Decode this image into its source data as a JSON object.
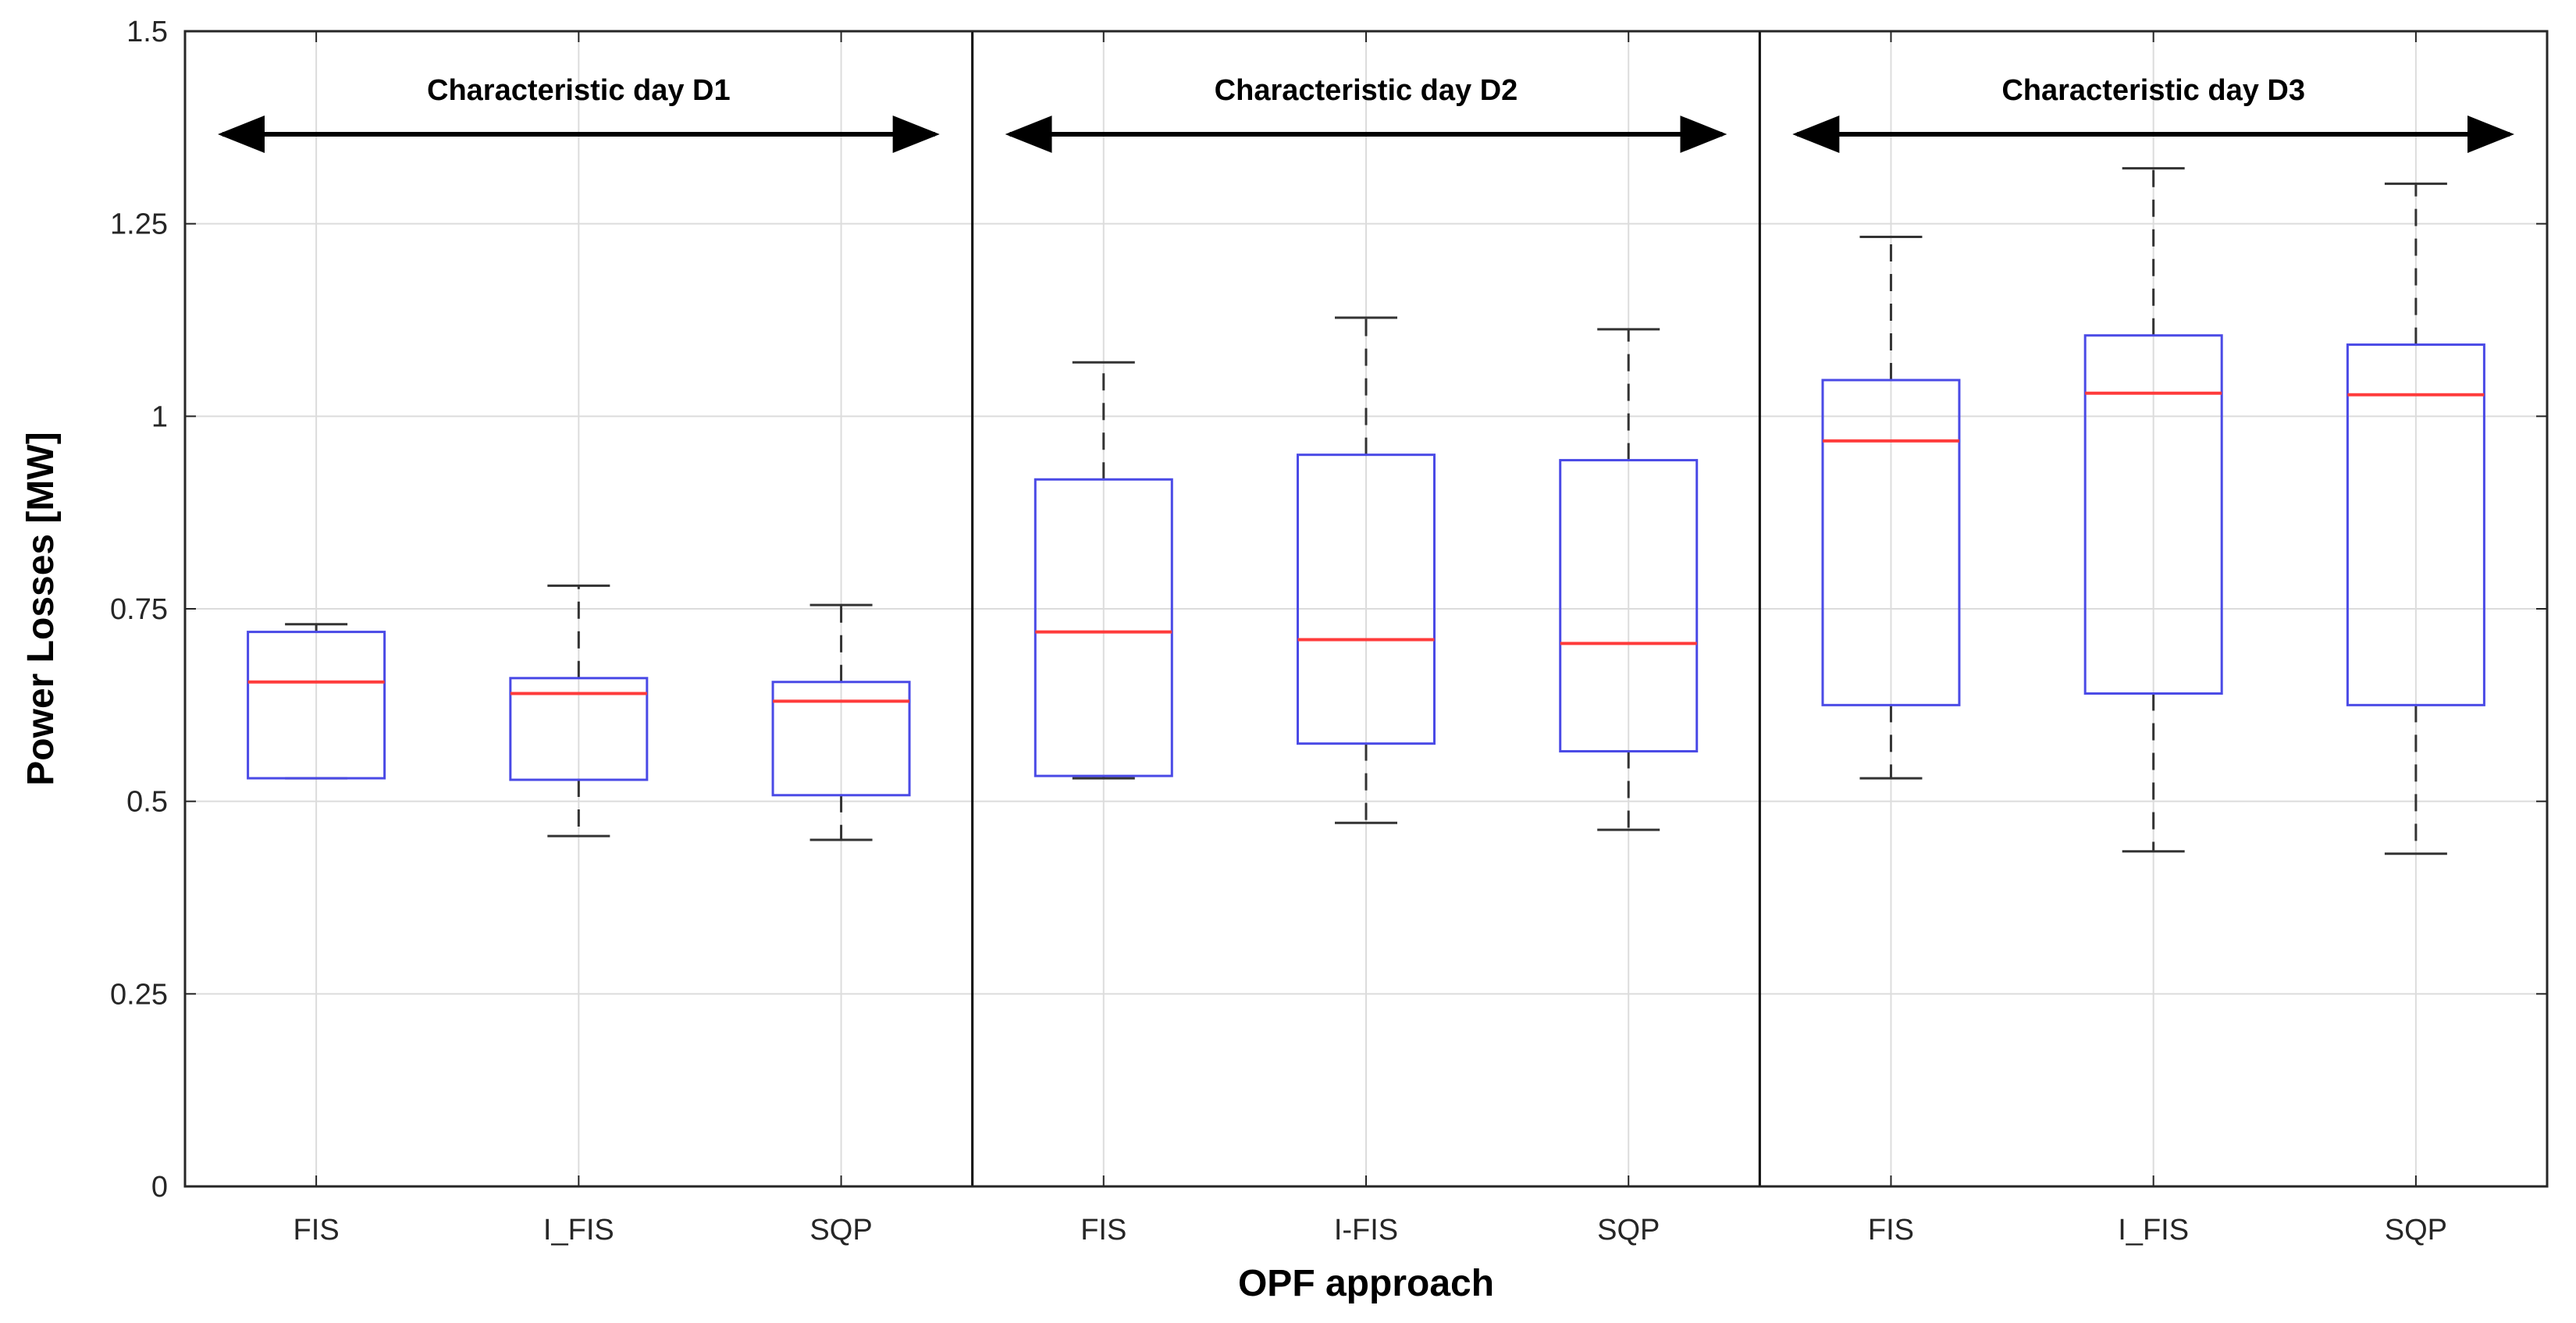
{
  "chart_data": {
    "type": "boxplot",
    "xlabel": "OPF approach",
    "ylabel": "Power Losses [MW]",
    "ylim": [
      0,
      1.5
    ],
    "yticks": [
      0,
      0.25,
      0.5,
      0.75,
      1,
      1.25,
      1.5
    ],
    "ytick_labels": [
      "0",
      "0.25",
      "0.5",
      "0.75",
      "1",
      "1.25",
      "1.5"
    ],
    "grid": true,
    "categories": [
      "FIS",
      "I_FIS",
      "SQP",
      "FIS",
      "I-FIS",
      "SQP",
      "FIS",
      "I_FIS",
      "SQP"
    ],
    "groups": [
      {
        "label": "Characteristic day D1",
        "start": 0,
        "end": 3
      },
      {
        "label": "Characteristic day D2",
        "start": 3,
        "end": 6
      },
      {
        "label": "Characteristic day D3",
        "start": 6,
        "end": 9
      }
    ],
    "boxes": [
      {
        "min": 0.53,
        "q1": 0.53,
        "median": 0.655,
        "q3": 0.72,
        "max": 0.73
      },
      {
        "min": 0.455,
        "q1": 0.528,
        "median": 0.64,
        "q3": 0.66,
        "max": 0.78
      },
      {
        "min": 0.45,
        "q1": 0.508,
        "median": 0.63,
        "q3": 0.655,
        "max": 0.755
      },
      {
        "min": 0.53,
        "q1": 0.533,
        "median": 0.72,
        "q3": 0.918,
        "max": 1.07
      },
      {
        "min": 0.472,
        "q1": 0.575,
        "median": 0.71,
        "q3": 0.95,
        "max": 1.128
      },
      {
        "min": 0.463,
        "q1": 0.565,
        "median": 0.705,
        "q3": 0.943,
        "max": 1.113
      },
      {
        "min": 0.53,
        "q1": 0.625,
        "median": 0.968,
        "q3": 1.047,
        "max": 1.233
      },
      {
        "min": 0.435,
        "q1": 0.64,
        "median": 1.03,
        "q3": 1.105,
        "max": 1.322
      },
      {
        "min": 0.432,
        "q1": 0.625,
        "median": 1.028,
        "q3": 1.093,
        "max": 1.302
      }
    ],
    "colors": {
      "box": "#4a4ae6",
      "median": "#ff3b3b",
      "whisker": "#333333",
      "axis": "#262626"
    }
  }
}
